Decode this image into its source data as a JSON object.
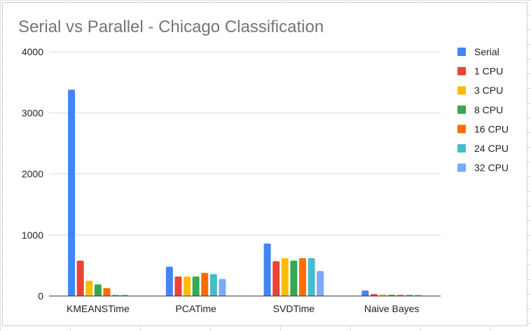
{
  "chart_data": {
    "type": "bar",
    "title": "Serial vs Parallel - Chicago Classification",
    "xlabel": "",
    "ylabel": "",
    "ylim": [
      0,
      4000
    ],
    "yticks": [
      0,
      1000,
      2000,
      3000,
      4000
    ],
    "grid": true,
    "legend_position": "right",
    "categories": [
      "KMEANSTime",
      "PCATime",
      "SVDTime",
      "Naive Bayes"
    ],
    "series": [
      {
        "name": "Serial",
        "color": "#4285f4",
        "values": [
          3380,
          480,
          860,
          90
        ]
      },
      {
        "name": "1 CPU",
        "color": "#ea4335",
        "values": [
          580,
          320,
          570,
          30
        ]
      },
      {
        "name": "3 CPU",
        "color": "#fbbc04",
        "values": [
          250,
          320,
          620,
          25
        ]
      },
      {
        "name": "8 CPU",
        "color": "#34a853",
        "values": [
          190,
          320,
          580,
          20
        ]
      },
      {
        "name": "16 CPU",
        "color": "#ff6d01",
        "values": [
          130,
          380,
          620,
          20
        ]
      },
      {
        "name": "24 CPU",
        "color": "#46bdc6",
        "values": [
          20,
          360,
          620,
          20
        ]
      },
      {
        "name": "32 CPU",
        "color": "#7baaf7",
        "values": [
          20,
          280,
          410,
          15
        ]
      }
    ]
  }
}
